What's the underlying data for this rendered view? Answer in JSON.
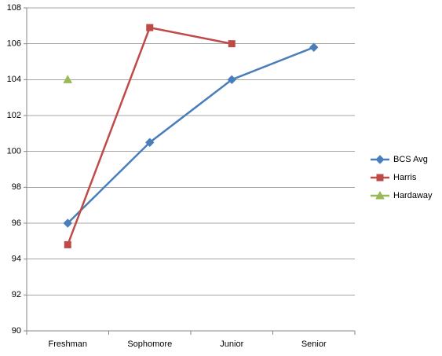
{
  "chart_data": {
    "type": "line",
    "categories": [
      "Freshman",
      "Sophomore",
      "Junior",
      "Senior"
    ],
    "series": [
      {
        "name": "BCS Avg",
        "color": "#4a7ebb",
        "marker": "diamond",
        "values": [
          96,
          100.5,
          104,
          105.8
        ]
      },
      {
        "name": "Harris",
        "color": "#be4b48",
        "marker": "square",
        "values": [
          94.8,
          106.9,
          106,
          null
        ]
      },
      {
        "name": "Hardaway",
        "color": "#98b954",
        "marker": "triangle",
        "values": [
          104,
          null,
          null,
          null
        ]
      }
    ],
    "ylim": [
      90,
      108
    ],
    "yticks": [
      90,
      92,
      94,
      96,
      98,
      100,
      102,
      104,
      106,
      108
    ],
    "grid": true,
    "legend": "right"
  }
}
